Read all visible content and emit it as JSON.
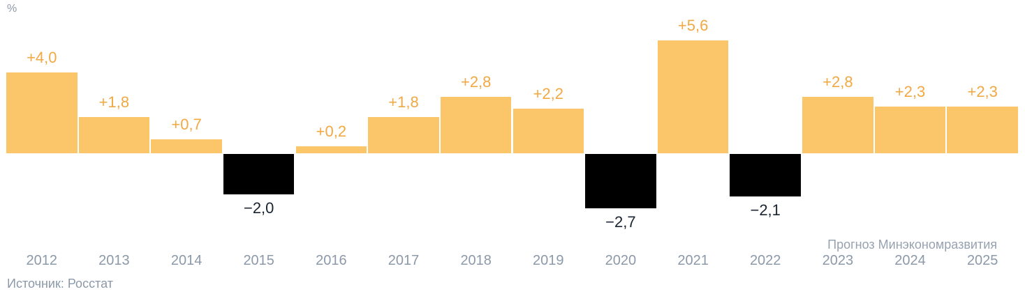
{
  "meta": {
    "unit_label": "%",
    "source": "Источник: Росстат",
    "forecast_note": "Прогноз Минэкономразвития"
  },
  "colors": {
    "positive_bar": "#FBC56A",
    "negative_bar": "#000000",
    "positive_label": "#F2A843",
    "negative_label": "#1A2430",
    "axis_text": "#8C99A9",
    "background": "#FFFFFF"
  },
  "chart_data": {
    "type": "bar",
    "title": "",
    "ylabel": "%",
    "xlabel": "",
    "categories": [
      "2012",
      "2013",
      "2014",
      "2015",
      "2016",
      "2017",
      "2018",
      "2019",
      "2020",
      "2021",
      "2022",
      "2023",
      "2024",
      "2025"
    ],
    "values": [
      4.0,
      1.8,
      0.7,
      -2.0,
      0.2,
      1.8,
      2.8,
      2.2,
      -2.7,
      5.6,
      -2.1,
      2.8,
      2.3,
      2.3
    ],
    "value_labels": [
      "+4,0",
      "+1,8",
      "+0,7",
      "−2,0",
      "+0,2",
      "+1,8",
      "+2,8",
      "+2,2",
      "−2,7",
      "+5,6",
      "−2,1",
      "+2,8",
      "+2,3",
      "+2,3"
    ],
    "forecast_years": [
      "2023",
      "2024",
      "2025"
    ],
    "forecast_annotation": "Прогноз Минэкономразвития",
    "source_annotation": "Источник: Росстат",
    "ylim": [
      -3,
      6
    ],
    "baseline": 0,
    "grid": false,
    "legend": false
  }
}
